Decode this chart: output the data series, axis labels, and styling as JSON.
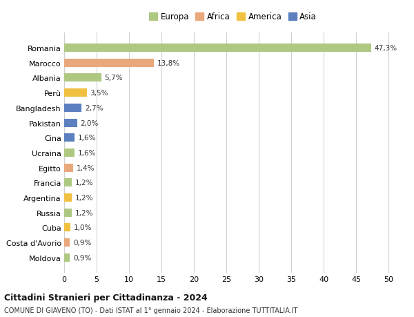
{
  "countries": [
    "Romania",
    "Marocco",
    "Albania",
    "Perù",
    "Bangladesh",
    "Pakistan",
    "Cina",
    "Ucraina",
    "Egitto",
    "Francia",
    "Argentina",
    "Russia",
    "Cuba",
    "Costa d'Avorio",
    "Moldova"
  ],
  "values": [
    47.3,
    13.8,
    5.7,
    3.5,
    2.7,
    2.0,
    1.6,
    1.6,
    1.4,
    1.2,
    1.2,
    1.2,
    1.0,
    0.9,
    0.9
  ],
  "labels": [
    "47,3%",
    "13,8%",
    "5,7%",
    "3,5%",
    "2,7%",
    "2,0%",
    "1,6%",
    "1,6%",
    "1,4%",
    "1,2%",
    "1,2%",
    "1,2%",
    "1,0%",
    "0,9%",
    "0,9%"
  ],
  "colors": [
    "#aec882",
    "#e8a87c",
    "#aec882",
    "#f0c040",
    "#5b7fbf",
    "#5b7fbf",
    "#5b7fbf",
    "#aec882",
    "#e8a87c",
    "#aec882",
    "#f0c040",
    "#aec882",
    "#f0c040",
    "#e8a87c",
    "#aec882"
  ],
  "legend": [
    {
      "label": "Europa",
      "color": "#aec882"
    },
    {
      "label": "Africa",
      "color": "#e8a87c"
    },
    {
      "label": "America",
      "color": "#f0c040"
    },
    {
      "label": "Asia",
      "color": "#5b7fbf"
    }
  ],
  "xlim": [
    0,
    52
  ],
  "xticks": [
    0,
    5,
    10,
    15,
    20,
    25,
    30,
    35,
    40,
    45,
    50
  ],
  "title": "Cittadini Stranieri per Cittadinanza - 2024",
  "subtitle": "COMUNE DI GIAVENO (TO) - Dati ISTAT al 1° gennaio 2024 - Elaborazione TUTTITALIA.IT",
  "background_color": "#ffffff",
  "grid_color": "#d0d0d0",
  "bar_height": 0.55
}
